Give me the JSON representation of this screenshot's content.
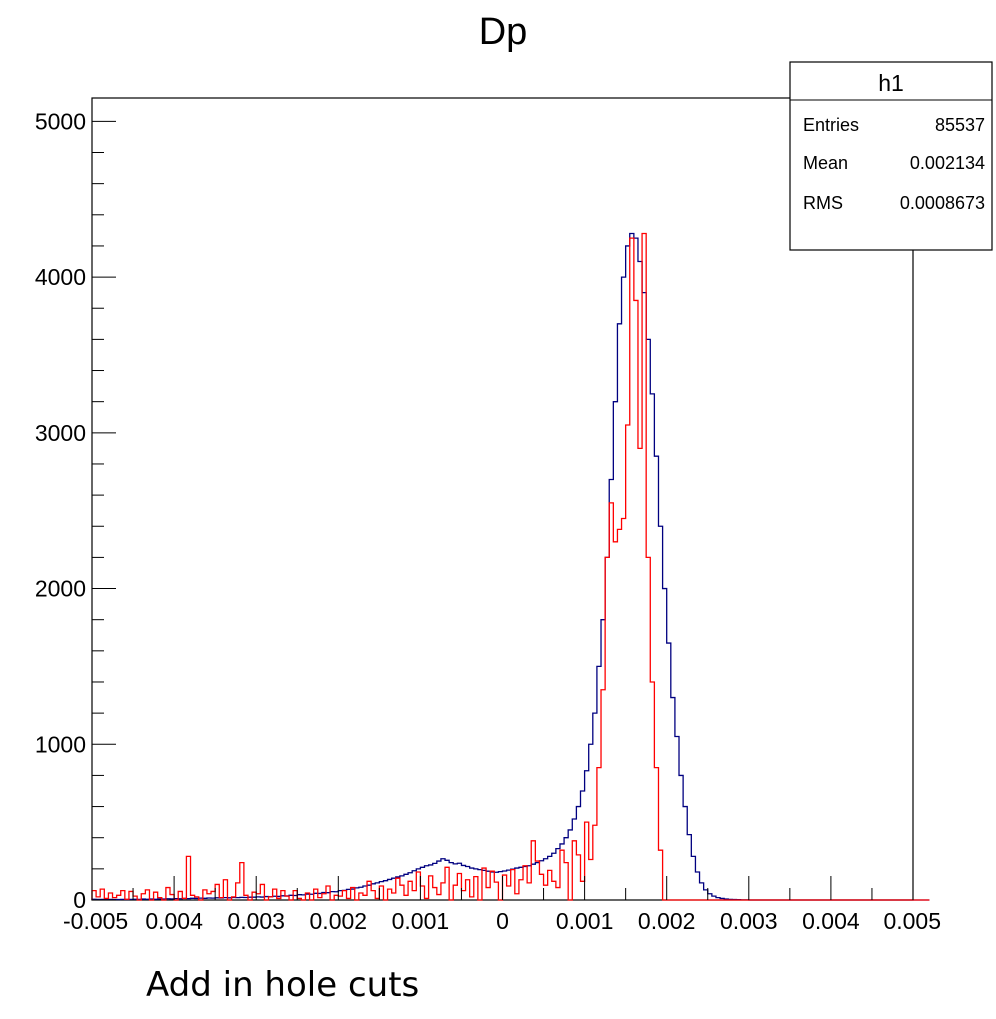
{
  "caption": "Add in hole cuts",
  "chart_data": {
    "type": "histogram",
    "title": "Dp",
    "xlabel": "",
    "ylabel": "",
    "xlim": [
      -0.005,
      0.005
    ],
    "ylim": [
      0,
      5150
    ],
    "x_ticks": [
      {
        "value": -0.005,
        "label": "-0.005"
      },
      {
        "value": -0.004,
        "label": "0.004"
      },
      {
        "value": -0.003,
        "label": "0.003"
      },
      {
        "value": -0.002,
        "label": "0.002"
      },
      {
        "value": -0.001,
        "label": "0.001"
      },
      {
        "value": 0,
        "label": "0"
      },
      {
        "value": 0.001,
        "label": "0.001"
      },
      {
        "value": 0.002,
        "label": "0.002"
      },
      {
        "value": 0.003,
        "label": "0.003"
      },
      {
        "value": 0.004,
        "label": "0.004"
      },
      {
        "value": 0.005,
        "label": "0.005"
      }
    ],
    "y_ticks": [
      {
        "value": 0,
        "label": "0"
      },
      {
        "value": 1000,
        "label": "1000"
      },
      {
        "value": 2000,
        "label": "2000"
      },
      {
        "value": 3000,
        "label": "3000"
      },
      {
        "value": 4000,
        "label": "4000"
      },
      {
        "value": 5000,
        "label": "5000"
      }
    ],
    "stats_box": {
      "title": "h1",
      "rows": [
        {
          "label": "Entries",
          "value": "85537"
        },
        {
          "label": "Mean",
          "value": "0.002134"
        },
        {
          "label": "RMS",
          "value": "0.0008673"
        }
      ]
    },
    "bins": {
      "min": -0.005,
      "max": 0.005,
      "count": 200
    },
    "series": [
      {
        "color": "#000080",
        "values": [
          5,
          4,
          4,
          3,
          4,
          3,
          3,
          4,
          3,
          4,
          5,
          4,
          6,
          5,
          6,
          5,
          7,
          6,
          8,
          7,
          9,
          8,
          10,
          9,
          11,
          10,
          12,
          11,
          13,
          12,
          14,
          13,
          15,
          14,
          16,
          15,
          17,
          16,
          18,
          18,
          20,
          19,
          22,
          21,
          24,
          23,
          27,
          26,
          30,
          29,
          34,
          33,
          38,
          37,
          43,
          42,
          48,
          47,
          54,
          53,
          60,
          62,
          68,
          70,
          78,
          82,
          90,
          95,
          104,
          110,
          118,
          124,
          132,
          140,
          148,
          155,
          165,
          175,
          188,
          200,
          210,
          220,
          225,
          235,
          250,
          265,
          255,
          240,
          232,
          236,
          222,
          215,
          205,
          200,
          195,
          190,
          185,
          180,
          178,
          182,
          186,
          192,
          198,
          205,
          210,
          215,
          220,
          230,
          240,
          252,
          265,
          280,
          300,
          330,
          360,
          400,
          450,
          520,
          600,
          700,
          830,
          1000,
          1200,
          1500,
          1800,
          2200,
          2700,
          3200,
          3700,
          4000,
          4200,
          4280,
          4250,
          4100,
          3900,
          3600,
          3250,
          2850,
          2400,
          2000,
          1650,
          1300,
          1050,
          800,
          600,
          420,
          280,
          180,
          110,
          65,
          40,
          25,
          15,
          10,
          6,
          4,
          3,
          2,
          1,
          1,
          0,
          0,
          0,
          0,
          0,
          0,
          0,
          0,
          0,
          0,
          0,
          0,
          0,
          0,
          0,
          0,
          0,
          0,
          0,
          0,
          0,
          0,
          0,
          0,
          0,
          0,
          0,
          0,
          0,
          0,
          0,
          0,
          0,
          0,
          0,
          0,
          0,
          0,
          0,
          0,
          0,
          0,
          0,
          0
        ]
      },
      {
        "color": "#ff0000",
        "values": [
          60,
          20,
          70,
          10,
          45,
          15,
          30,
          60,
          5,
          55,
          25,
          0,
          40,
          65,
          0,
          50,
          15,
          0,
          80,
          35,
          0,
          55,
          10,
          280,
          30,
          20,
          0,
          65,
          40,
          55,
          100,
          15,
          130,
          0,
          20,
          110,
          240,
          30,
          0,
          50,
          40,
          100,
          0,
          20,
          70,
          10,
          60,
          25,
          0,
          60,
          10,
          0,
          45,
          0,
          70,
          15,
          40,
          90,
          0,
          30,
          25,
          60,
          10,
          80,
          0,
          45,
          30,
          120,
          60,
          10,
          90,
          0,
          70,
          45,
          140,
          95,
          30,
          120,
          60,
          180,
          90,
          10,
          155,
          80,
          35,
          110,
          210,
          0,
          95,
          170,
          60,
          130,
          20,
          150,
          0,
          205,
          80,
          185,
          115,
          0,
          160,
          90,
          195,
          40,
          130,
          220,
          110,
          380,
          250,
          165,
          95,
          190,
          120,
          80,
          320,
          240,
          0,
          380,
          290,
          120,
          500,
          260,
          480,
          850,
          1350,
          2200,
          2550,
          2300,
          2380,
          2450,
          3050,
          4250,
          3850,
          2900,
          4280,
          2200,
          1400,
          850,
          320,
          0,
          0,
          0,
          0,
          0,
          0,
          0,
          0,
          0,
          0,
          0,
          0,
          0,
          0,
          0,
          0,
          0,
          0,
          0,
          0,
          0,
          0,
          0,
          0,
          0,
          0,
          0,
          0,
          0,
          0,
          0,
          0,
          0,
          0,
          0,
          0,
          0,
          0,
          0,
          0,
          0,
          0,
          0,
          0,
          0,
          0,
          0,
          0,
          0,
          0,
          0,
          0,
          0,
          0,
          0,
          0,
          0,
          0,
          0,
          0,
          0,
          0,
          0,
          0,
          0
        ]
      }
    ]
  }
}
